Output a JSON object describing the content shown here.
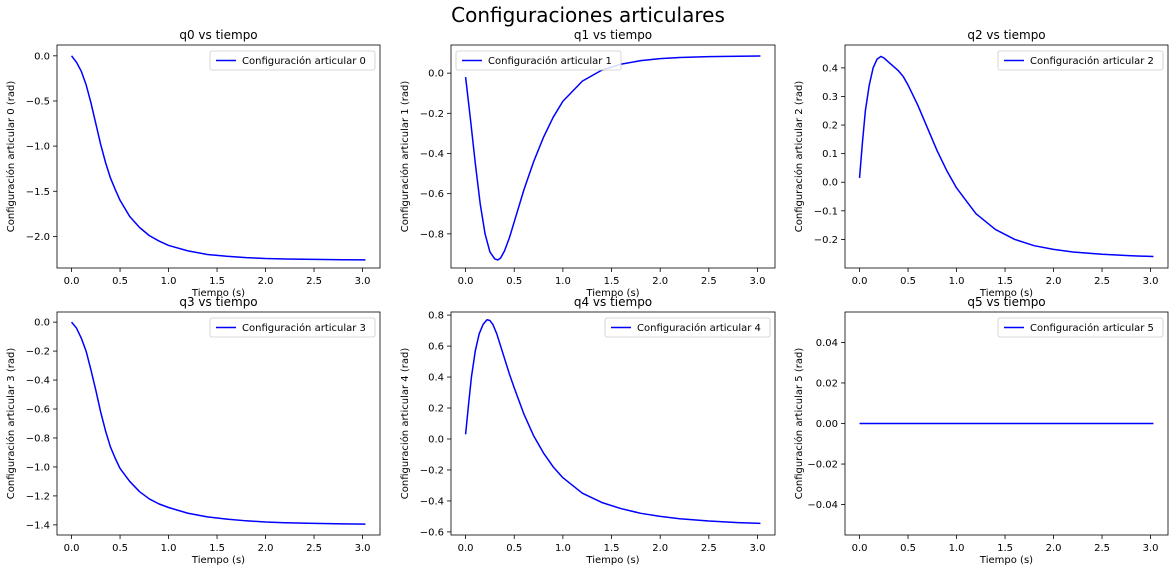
{
  "figure": {
    "suptitle": "Configuraciones articulares"
  },
  "chart_data": [
    {
      "type": "line",
      "title": "q0 vs tiempo",
      "xlabel": "Tiempo (s)",
      "ylabel": "Configuración articular 0 (rad)",
      "xlim": [
        -0.15,
        3.18
      ],
      "ylim": [
        -2.35,
        0.12
      ],
      "xticks": [
        0.0,
        0.5,
        1.0,
        1.5,
        2.0,
        2.5,
        3.0
      ],
      "xtick_labels": [
        "0.0",
        "0.5",
        "1.0",
        "1.5",
        "2.0",
        "2.5",
        "3.0"
      ],
      "yticks": [
        0.0,
        -0.5,
        -1.0,
        -1.5,
        -2.0
      ],
      "ytick_labels": [
        "0.0",
        "−0.5",
        "−1.0",
        "−1.5",
        "−2.0"
      ],
      "legend": "upper right",
      "series": [
        {
          "name": "Configuración articular 0",
          "color": "#0000ff",
          "x": [
            0,
            0.05,
            0.1,
            0.15,
            0.2,
            0.25,
            0.3,
            0.35,
            0.4,
            0.45,
            0.5,
            0.6,
            0.7,
            0.8,
            0.9,
            1.0,
            1.2,
            1.4,
            1.6,
            1.8,
            2.0,
            2.2,
            2.5,
            2.8,
            3.03
          ],
          "y": [
            0,
            -0.07,
            -0.17,
            -0.32,
            -0.52,
            -0.75,
            -0.98,
            -1.18,
            -1.35,
            -1.48,
            -1.6,
            -1.78,
            -1.9,
            -1.99,
            -2.05,
            -2.1,
            -2.16,
            -2.2,
            -2.22,
            -2.235,
            -2.245,
            -2.25,
            -2.255,
            -2.258,
            -2.26
          ]
        }
      ]
    },
    {
      "type": "line",
      "title": "q1 vs tiempo",
      "xlabel": "Tiempo (s)",
      "ylabel": "Configuración articular 1 (rad)",
      "xlim": [
        -0.15,
        3.18
      ],
      "ylim": [
        -0.97,
        0.14
      ],
      "xticks": [
        0.0,
        0.5,
        1.0,
        1.5,
        2.0,
        2.5,
        3.0
      ],
      "xtick_labels": [
        "0.0",
        "0.5",
        "1.0",
        "1.5",
        "2.0",
        "2.5",
        "3.0"
      ],
      "yticks": [
        0.0,
        -0.2,
        -0.4,
        -0.6,
        -0.8
      ],
      "ytick_labels": [
        "0.0",
        "−0.2",
        "−0.4",
        "−0.6",
        "−0.8"
      ],
      "legend": "upper left",
      "series": [
        {
          "name": "Configuración articular 1",
          "color": "#0000ff",
          "x": [
            0,
            0.05,
            0.1,
            0.15,
            0.2,
            0.25,
            0.3,
            0.33,
            0.36,
            0.4,
            0.45,
            0.5,
            0.6,
            0.7,
            0.8,
            0.9,
            1.0,
            1.2,
            1.4,
            1.6,
            1.8,
            2.0,
            2.2,
            2.5,
            2.8,
            3.03
          ],
          "y": [
            -0.02,
            -0.23,
            -0.45,
            -0.65,
            -0.8,
            -0.89,
            -0.925,
            -0.93,
            -0.92,
            -0.885,
            -0.82,
            -0.74,
            -0.58,
            -0.44,
            -0.32,
            -0.22,
            -0.14,
            -0.04,
            0.015,
            0.045,
            0.062,
            0.072,
            0.078,
            0.082,
            0.084,
            0.085
          ]
        }
      ]
    },
    {
      "type": "line",
      "title": "q2 vs tiempo",
      "xlabel": "Tiempo (s)",
      "ylabel": "Configuración articular 2 (rad)",
      "xlim": [
        -0.15,
        3.18
      ],
      "ylim": [
        -0.3,
        0.48
      ],
      "xticks": [
        0.0,
        0.5,
        1.0,
        1.5,
        2.0,
        2.5,
        3.0
      ],
      "xtick_labels": [
        "0.0",
        "0.5",
        "1.0",
        "1.5",
        "2.0",
        "2.5",
        "3.0"
      ],
      "yticks": [
        0.4,
        0.3,
        0.2,
        0.1,
        0.0,
        -0.1,
        -0.2
      ],
      "ytick_labels": [
        "0.4",
        "0.3",
        "0.2",
        "0.1",
        "0.0",
        "−0.1",
        "−0.2"
      ],
      "legend": "upper right",
      "series": [
        {
          "name": "Configuración articular 2",
          "color": "#0000ff",
          "x": [
            0,
            0.03,
            0.06,
            0.1,
            0.14,
            0.18,
            0.22,
            0.25,
            0.3,
            0.35,
            0.4,
            0.45,
            0.5,
            0.6,
            0.7,
            0.8,
            0.9,
            1.0,
            1.2,
            1.4,
            1.6,
            1.8,
            2.0,
            2.2,
            2.5,
            2.8,
            3.03
          ],
          "y": [
            0.015,
            0.14,
            0.25,
            0.34,
            0.4,
            0.43,
            0.44,
            0.435,
            0.42,
            0.405,
            0.39,
            0.37,
            0.34,
            0.27,
            0.19,
            0.11,
            0.04,
            -0.02,
            -0.11,
            -0.165,
            -0.2,
            -0.222,
            -0.235,
            -0.244,
            -0.252,
            -0.257,
            -0.26
          ]
        }
      ]
    },
    {
      "type": "line",
      "title": "q3 vs tiempo",
      "xlabel": "Tiempo (s)",
      "ylabel": "Configuración articular 3 (rad)",
      "xlim": [
        -0.15,
        3.18
      ],
      "ylim": [
        -1.47,
        0.07
      ],
      "xticks": [
        0.0,
        0.5,
        1.0,
        1.5,
        2.0,
        2.5,
        3.0
      ],
      "xtick_labels": [
        "0.0",
        "0.5",
        "1.0",
        "1.5",
        "2.0",
        "2.5",
        "3.0"
      ],
      "yticks": [
        0.0,
        -0.2,
        -0.4,
        -0.6,
        -0.8,
        -1.0,
        -1.2,
        -1.4
      ],
      "ytick_labels": [
        "0.0",
        "−0.2",
        "−0.4",
        "−0.6",
        "−0.8",
        "−1.0",
        "−1.2",
        "−1.4"
      ],
      "legend": "upper right",
      "series": [
        {
          "name": "Configuración articular 3",
          "color": "#0000ff",
          "x": [
            0,
            0.05,
            0.1,
            0.15,
            0.2,
            0.25,
            0.3,
            0.35,
            0.4,
            0.45,
            0.5,
            0.6,
            0.7,
            0.8,
            0.9,
            1.0,
            1.2,
            1.4,
            1.6,
            1.8,
            2.0,
            2.2,
            2.5,
            2.8,
            3.03
          ],
          "y": [
            0,
            -0.04,
            -0.11,
            -0.2,
            -0.33,
            -0.47,
            -0.62,
            -0.75,
            -0.86,
            -0.94,
            -1.01,
            -1.1,
            -1.17,
            -1.22,
            -1.255,
            -1.28,
            -1.32,
            -1.345,
            -1.36,
            -1.372,
            -1.38,
            -1.385,
            -1.39,
            -1.393,
            -1.395
          ]
        }
      ]
    },
    {
      "type": "line",
      "title": "q4 vs tiempo",
      "xlabel": "Tiempo (s)",
      "ylabel": "Configuración articular 4 (rad)",
      "xlim": [
        -0.15,
        3.18
      ],
      "ylim": [
        -0.62,
        0.82
      ],
      "xticks": [
        0.0,
        0.5,
        1.0,
        1.5,
        2.0,
        2.5,
        3.0
      ],
      "xtick_labels": [
        "0.0",
        "0.5",
        "1.0",
        "1.5",
        "2.0",
        "2.5",
        "3.0"
      ],
      "yticks": [
        0.8,
        0.6,
        0.4,
        0.2,
        0.0,
        -0.2,
        -0.4,
        -0.6
      ],
      "ytick_labels": [
        "0.8",
        "0.6",
        "0.4",
        "0.2",
        "0.0",
        "−0.2",
        "−0.4",
        "−0.6"
      ],
      "legend": "upper right",
      "series": [
        {
          "name": "Configuración articular 4",
          "color": "#0000ff",
          "x": [
            0,
            0.03,
            0.06,
            0.1,
            0.14,
            0.18,
            0.22,
            0.25,
            0.28,
            0.32,
            0.36,
            0.4,
            0.45,
            0.5,
            0.6,
            0.7,
            0.8,
            0.9,
            1.0,
            1.2,
            1.4,
            1.6,
            1.8,
            2.0,
            2.2,
            2.5,
            2.8,
            3.03
          ],
          "y": [
            0.03,
            0.22,
            0.4,
            0.57,
            0.68,
            0.74,
            0.77,
            0.765,
            0.74,
            0.68,
            0.6,
            0.52,
            0.42,
            0.33,
            0.16,
            0.02,
            -0.09,
            -0.18,
            -0.25,
            -0.35,
            -0.41,
            -0.45,
            -0.48,
            -0.5,
            -0.515,
            -0.53,
            -0.54,
            -0.545
          ]
        }
      ]
    },
    {
      "type": "line",
      "title": "q5 vs tiempo",
      "xlabel": "Tiempo (s)",
      "ylabel": "Configuración articular 5 (rad)",
      "xlim": [
        -0.15,
        3.18
      ],
      "ylim": [
        -0.055,
        0.055
      ],
      "xticks": [
        0.0,
        0.5,
        1.0,
        1.5,
        2.0,
        2.5,
        3.0
      ],
      "xtick_labels": [
        "0.0",
        "0.5",
        "1.0",
        "1.5",
        "2.0",
        "2.5",
        "3.0"
      ],
      "yticks": [
        0.04,
        0.02,
        0.0,
        -0.02,
        -0.04
      ],
      "ytick_labels": [
        "0.04",
        "0.02",
        "0.00",
        "−0.02",
        "−0.04"
      ],
      "legend": "upper right",
      "series": [
        {
          "name": "Configuración articular 5",
          "color": "#0000ff",
          "x": [
            0,
            3.03
          ],
          "y": [
            0,
            0
          ]
        }
      ]
    }
  ]
}
